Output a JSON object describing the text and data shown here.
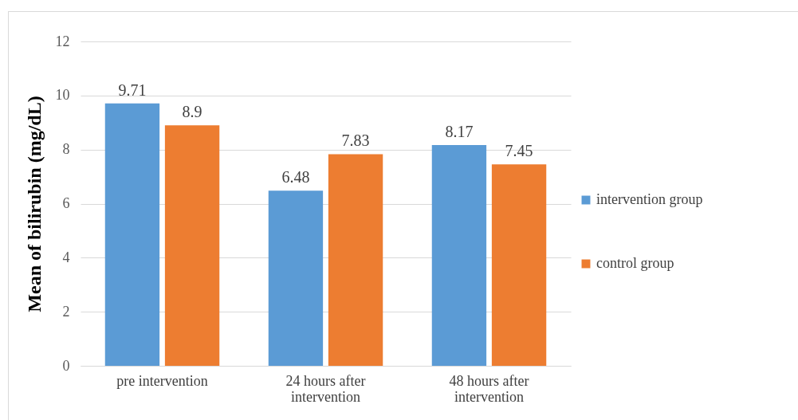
{
  "chart_data": {
    "type": "bar",
    "ylabel": "Mean of bilirubin (mg/dL)",
    "categories": [
      "pre intervention",
      "24 hours after intervention",
      "48 hours after intervention"
    ],
    "series": [
      {
        "name": "intervention group",
        "color": "#5b9bd5",
        "values": [
          9.71,
          6.48,
          8.17
        ]
      },
      {
        "name": "control group",
        "color": "#ed7d31",
        "values": [
          8.9,
          7.83,
          7.45
        ]
      }
    ],
    "ylim": [
      0,
      12
    ],
    "yticks": [
      0,
      2,
      4,
      6,
      8,
      10,
      12
    ],
    "grid": "y",
    "legend": "right",
    "data_labels": true
  }
}
